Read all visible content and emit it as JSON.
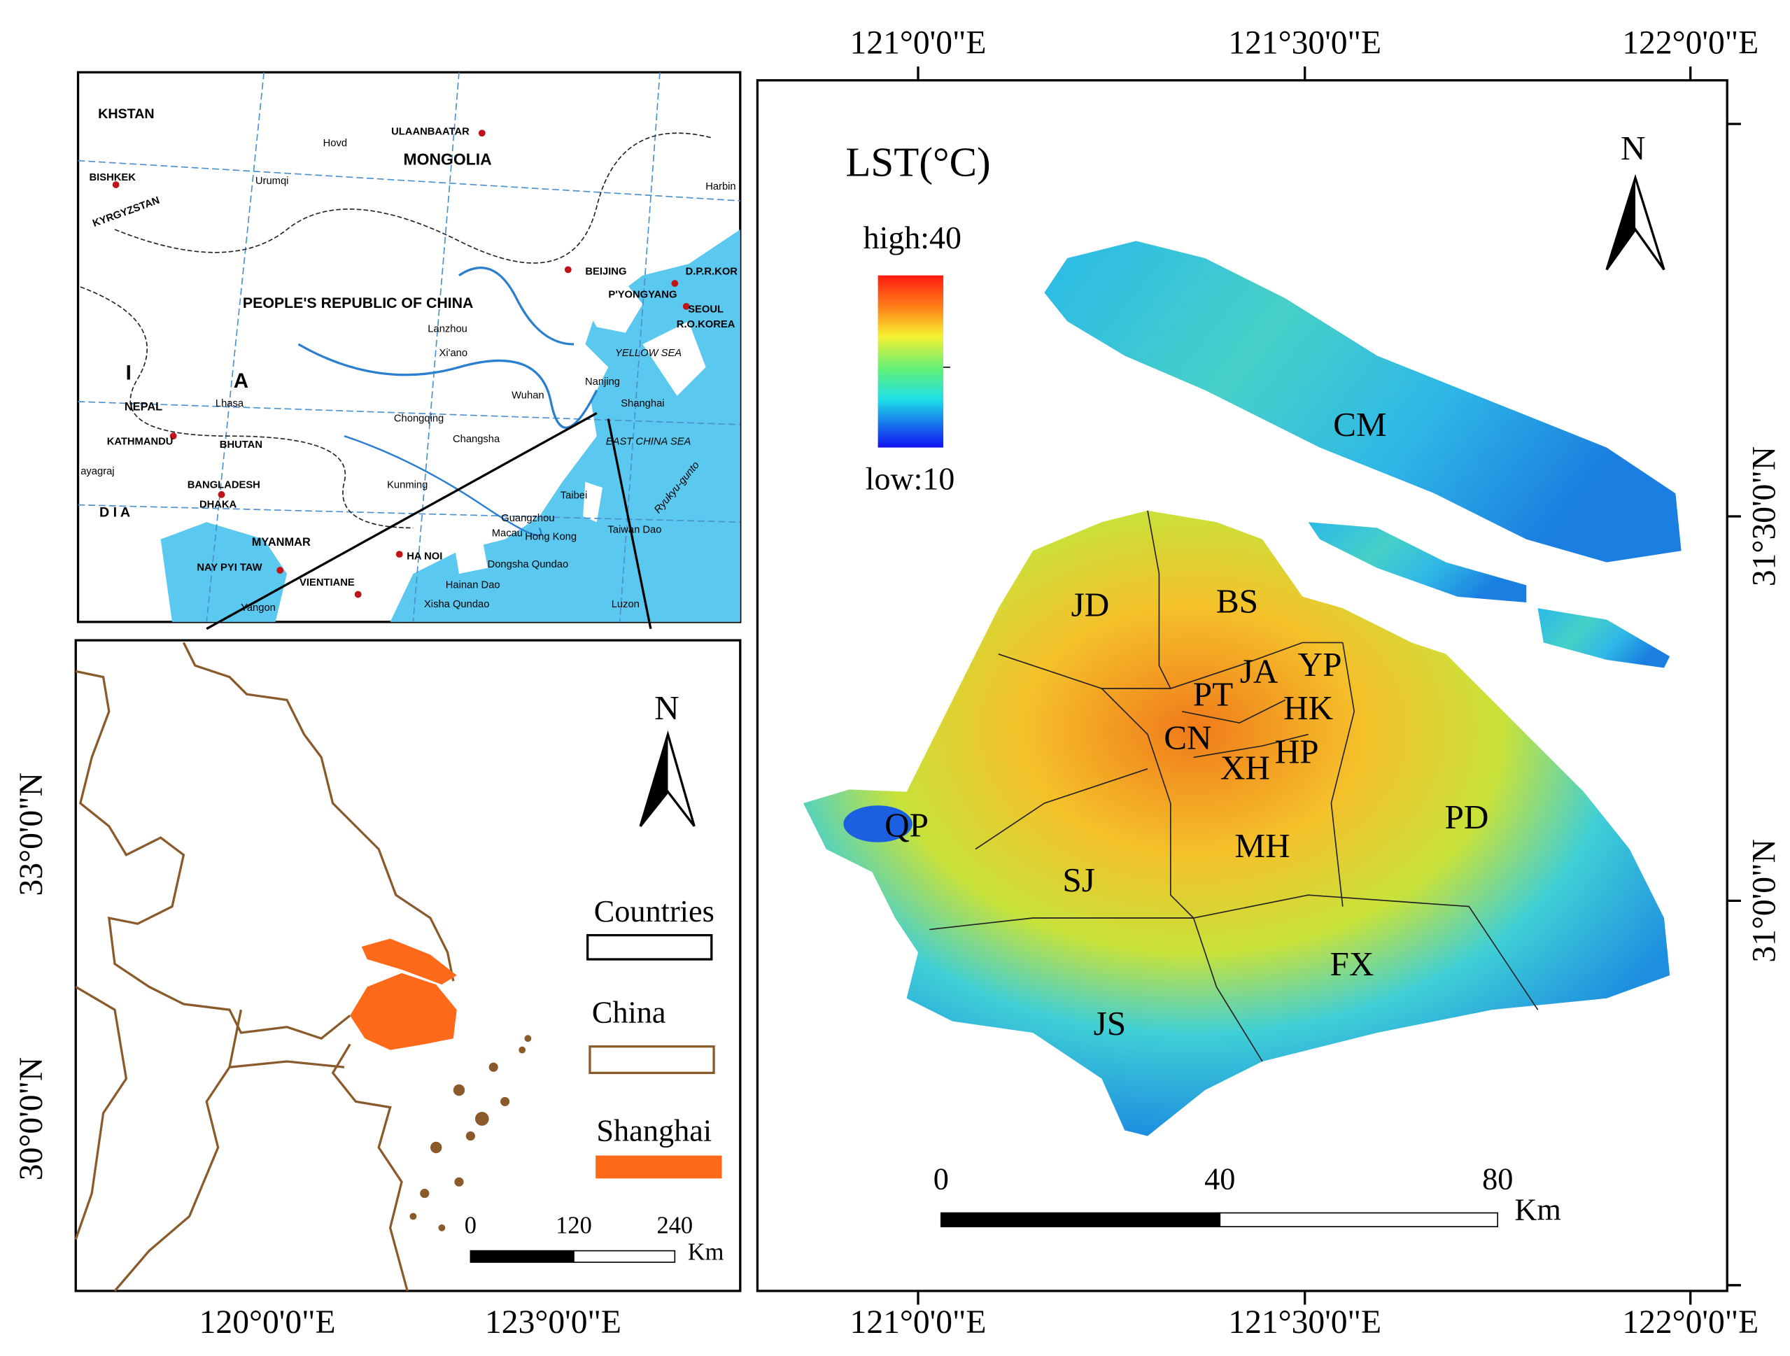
{
  "main_map": {
    "top_labels": [
      "121°0'0\"E",
      "121°30'0\"E",
      "122°0'0\"E"
    ],
    "bottom_labels": [
      "121°0'0\"E",
      "121°30'0\"E",
      "122°0'0\"E"
    ],
    "right_labels": [
      "31°30'0\"N",
      "31°0'0\"N"
    ],
    "legend": {
      "title": "LST(°C)",
      "high": "high:40",
      "low": "low:10"
    },
    "north": "N",
    "districts": [
      "CM",
      "JD",
      "BS",
      "JA",
      "YP",
      "PT",
      "HK",
      "CN",
      "HP",
      "XH",
      "QP",
      "PD",
      "MH",
      "SJ",
      "FX",
      "JS"
    ],
    "scale": {
      "ticks": [
        "0",
        "40",
        "80"
      ],
      "unit": "Km"
    }
  },
  "locator": {
    "labels": [
      "KHSTAN",
      "ULAANBAATAR",
      "MONGOLIA",
      "Hovd",
      "BISHKEK",
      "Urumqi",
      "Harbin",
      "KYRGYZSTAN",
      "PEOPLE'S REPUBLIC OF CHINA",
      "BEIJING",
      "D.P.R.KOR",
      "P'YONGYANG",
      "SEOUL",
      "R.O.KOREA",
      "Lanzhou",
      "Xi'ano",
      "YELLOW SEA",
      "I",
      "A",
      "Nanjing",
      "Shanghai",
      "Lhasa",
      "NEPAL",
      "Wuhan",
      "Chongqing",
      "Changsha",
      "EAST CHINA SEA",
      "KATHMANDU",
      "BHUTAN",
      "Kunming",
      "BANGLADESH",
      "Taibei",
      "D I A",
      "Guangzhou",
      "Macau",
      "Hong Kong",
      "Taiwan Dao",
      "MYANMAR",
      "HA NOI",
      "NAY PYI TAW",
      "Dongsha Qundao",
      "Hainan Dao",
      "VIENTIANE",
      "Xisha Qundao",
      "Luzon",
      "Yangon",
      "Ryukyu-gunto",
      "ayagraj",
      "DHAKA"
    ]
  },
  "inset": {
    "left_labels": [
      "33°0'0\"N",
      "30°0'0\"N"
    ],
    "bottom_labels": [
      "120°0'0\"E",
      "123°0'0\"E"
    ],
    "north": "N",
    "legend": [
      "Countries",
      "China",
      "Shanghai"
    ],
    "scale": {
      "ticks": [
        "0",
        "120",
        "240"
      ],
      "unit": "Km"
    }
  }
}
